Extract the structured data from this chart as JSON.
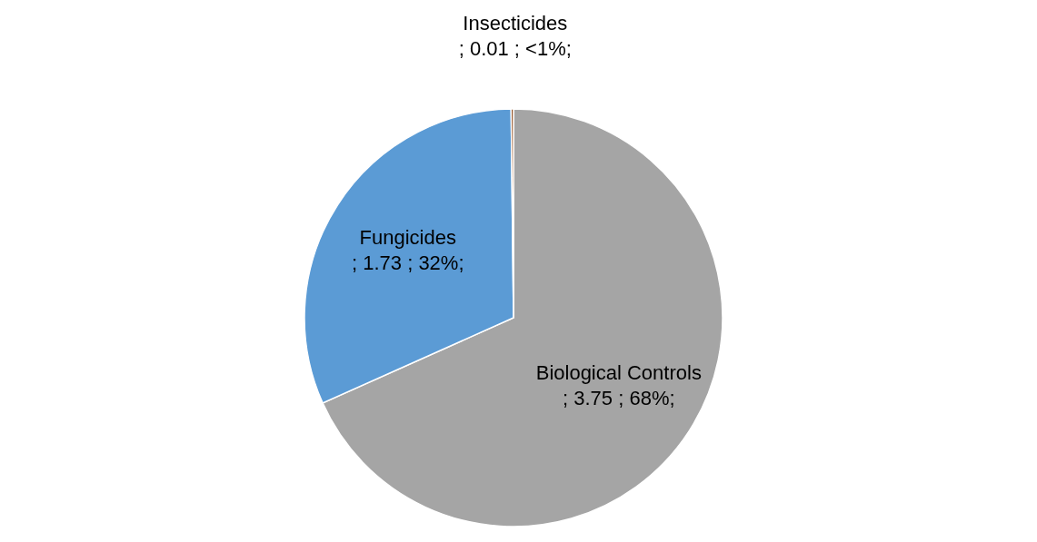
{
  "chart_data": {
    "type": "pie",
    "categories": [
      "Biological Controls",
      "Fungicides",
      "Insecticides"
    ],
    "values": [
      3.75,
      1.73,
      0.01
    ],
    "value_labels": [
      "; 3.75 ; 68%;",
      "; 1.73 ; 32%;",
      "; 0.01 ; <1%;"
    ],
    "colors": [
      "#a5a5a5",
      "#5b9bd5",
      "#843c0c"
    ]
  }
}
